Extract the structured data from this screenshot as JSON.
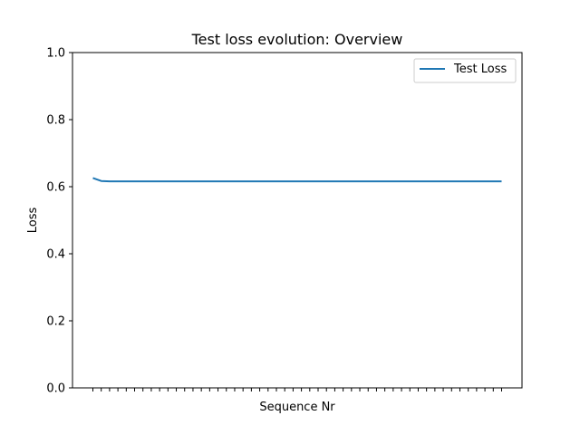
{
  "chart_data": {
    "type": "line",
    "title": "Test loss evolution: Overview",
    "xlabel": "Sequence Nr",
    "ylabel": "Loss",
    "ylim": [
      0.0,
      1.0
    ],
    "yticks": [
      "0.0",
      "0.2",
      "0.4",
      "0.6",
      "0.8",
      "1.0"
    ],
    "x_tick_count": 50,
    "x_tick_labels_visible": false,
    "grid": false,
    "legend_position": "top-right",
    "series": [
      {
        "name": "Test Loss",
        "color": "#1f77b4",
        "values": [
          0.626,
          0.617,
          0.616,
          0.616,
          0.616,
          0.616,
          0.616,
          0.616,
          0.616,
          0.616,
          0.616,
          0.616,
          0.616,
          0.616,
          0.616,
          0.616,
          0.616,
          0.616,
          0.616,
          0.616,
          0.616,
          0.616,
          0.616,
          0.616,
          0.616,
          0.616,
          0.616,
          0.616,
          0.616,
          0.616,
          0.616,
          0.616,
          0.616,
          0.616,
          0.616,
          0.616,
          0.616,
          0.616,
          0.616,
          0.616,
          0.616,
          0.616,
          0.616,
          0.616,
          0.616,
          0.616,
          0.616,
          0.616,
          0.616,
          0.616
        ]
      }
    ]
  }
}
